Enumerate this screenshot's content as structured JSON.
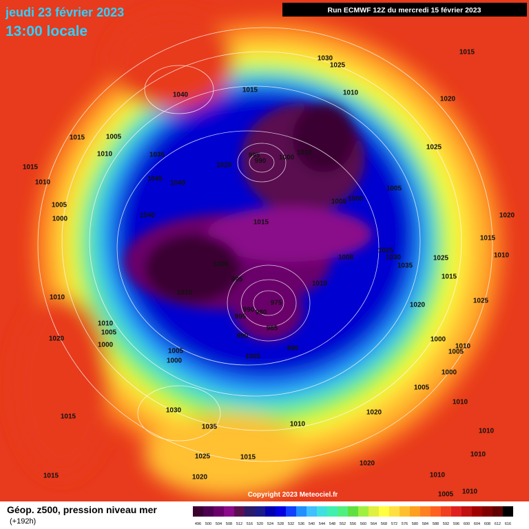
{
  "header": {
    "date": "jeudi 23 février 2023",
    "time": "13:00 locale",
    "run": "Run ECMWF 12Z du mercredi 15 février 2023"
  },
  "map": {
    "copyright": "Copyright 2023 Meteociel.fr",
    "isobar_labels": [
      1015,
      1030,
      1025,
      1040,
      1015,
      1010,
      1020,
      1005,
      1015,
      1010,
      1035,
      995,
      990,
      1000,
      1010,
      1025,
      1015,
      1020,
      1045,
      1040,
      1010,
      1005,
      1000,
      1005,
      1005,
      1000,
      1040,
      1015,
      1020,
      1015,
      1025,
      1030,
      1035,
      1008,
      1006,
      1025,
      995,
      1015,
      1010,
      1010,
      975,
      990,
      980,
      995,
      985,
      1020,
      1025,
      1010,
      1010,
      1005,
      990,
      1000,
      1020,
      1000,
      1010,
      1005,
      1005,
      1000,
      1005,
      990,
      1000,
      1005,
      1030,
      1010,
      1020,
      1015,
      1035,
      1010,
      1010,
      1025,
      1015,
      1020,
      1010,
      1015,
      1020,
      1010,
      1005,
      1010,
      1010
    ]
  },
  "legend": {
    "title": "Géop. z500, pression niveau mer",
    "subtitle": "(+192h)",
    "ticks": [
      496,
      500,
      504,
      508,
      512,
      516,
      520,
      524,
      528,
      532,
      536,
      540,
      544,
      548,
      552,
      556,
      560,
      564,
      568,
      572,
      576,
      580,
      584,
      588,
      592,
      596,
      600,
      604,
      608,
      612,
      616
    ],
    "colors": [
      "#3a0030",
      "#4b0050",
      "#6a006a",
      "#8a0a8a",
      "#5a1050",
      "#2a1a6a",
      "#1a1a8a",
      "#0000b0",
      "#0000e0",
      "#1040ff",
      "#2090ff",
      "#40c0ff",
      "#40e0e0",
      "#40f0b0",
      "#50f080",
      "#60e040",
      "#a0f040",
      "#e0f040",
      "#ffff40",
      "#ffe040",
      "#ffc030",
      "#ffa020",
      "#ff8020",
      "#ff6020",
      "#f04020",
      "#e02020",
      "#c01010",
      "#a00000",
      "#800000",
      "#600000",
      "#000000"
    ]
  }
}
